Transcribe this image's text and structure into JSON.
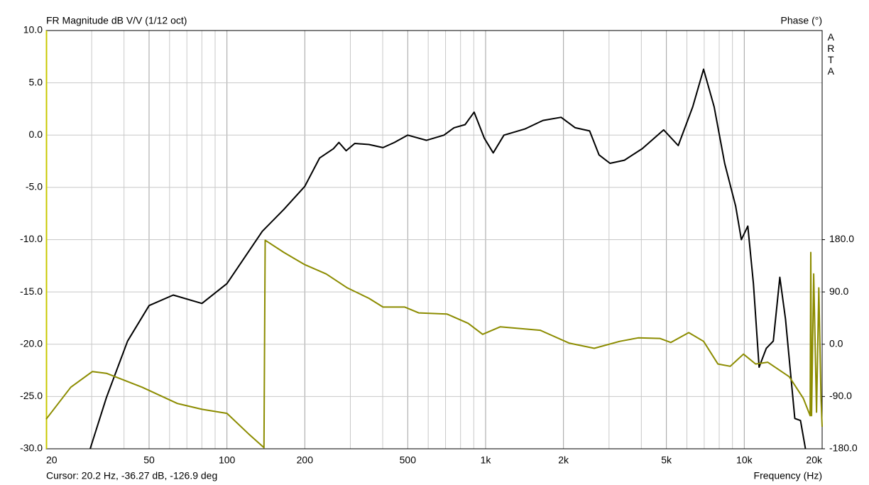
{
  "chart_data": {
    "type": "line",
    "title": "FR Magnitude dB V/V (1/12 oct)",
    "y2_label": "Phase (°)",
    "brand": "ARTA",
    "cursor_text": "Cursor: 20.2 Hz, -36.27 dB, -126.9 deg",
    "x_label": "Frequency (Hz)",
    "log_x": true,
    "grid": true,
    "xlim": [
      20,
      20000
    ],
    "xticks": [
      {
        "value": 20,
        "label": "20"
      },
      {
        "value": 50,
        "label": "50"
      },
      {
        "value": 100,
        "label": "100"
      },
      {
        "value": 200,
        "label": "200"
      },
      {
        "value": 500,
        "label": "500"
      },
      {
        "value": 1000,
        "label": "1k"
      },
      {
        "value": 2000,
        "label": "2k"
      },
      {
        "value": 5000,
        "label": "5k"
      },
      {
        "value": 10000,
        "label": "10k"
      },
      {
        "value": 20000,
        "label": "20k"
      }
    ],
    "x_minor_grid": [
      30,
      40,
      60,
      70,
      80,
      90,
      300,
      400,
      600,
      700,
      800,
      900,
      3000,
      4000,
      6000,
      7000,
      8000,
      9000
    ],
    "ylim": [
      -30,
      10
    ],
    "yticks": [
      {
        "value": 10,
        "label": "10.0"
      },
      {
        "value": 5,
        "label": "5.0"
      },
      {
        "value": 0,
        "label": "0.0"
      },
      {
        "value": -5,
        "label": "-5.0"
      },
      {
        "value": -10,
        "label": "-10.0"
      },
      {
        "value": -15,
        "label": "-15.0"
      },
      {
        "value": -20,
        "label": "-20.0"
      },
      {
        "value": -25,
        "label": "-25.0"
      },
      {
        "value": -30,
        "label": "-30.0"
      }
    ],
    "y2lim": [
      -180,
      540
    ],
    "y2ticks": [
      {
        "value": 180,
        "label": "180.0"
      },
      {
        "value": 90,
        "label": "90.0"
      },
      {
        "value": 0,
        "label": "0.0"
      },
      {
        "value": -90,
        "label": "-90.0"
      },
      {
        "value": -180,
        "label": "-180.0"
      }
    ],
    "series": [
      {
        "color": "#000000",
        "x": [
          29.6,
          34.2,
          41.3,
          50,
          62,
          80,
          100,
          137,
          166,
          200,
          228,
          258,
          271,
          289,
          312,
          354,
          401,
          444,
          500,
          591,
          690,
          755,
          833,
          903,
          989,
          1070,
          1177,
          1424,
          1666,
          1958,
          2220,
          2525,
          2745,
          3026,
          3440,
          4033,
          4880,
          5556,
          6320,
          6960,
          7650,
          8400,
          9260,
          9740,
          10320,
          10850,
          11410,
          12160,
          12950,
          13720,
          14430,
          15680,
          16490,
          17240
        ],
        "values": [
          -30,
          -25.1,
          -19.7,
          -16.3,
          -15.3,
          -16.1,
          -14.2,
          -9.2,
          -7.1,
          -4.9,
          -2.2,
          -1.3,
          -0.7,
          -1.5,
          -0.8,
          -0.9,
          -1.2,
          -0.7,
          0.0,
          -0.5,
          0.0,
          0.7,
          1.0,
          2.2,
          -0.3,
          -1.7,
          0.0,
          0.6,
          1.4,
          1.7,
          0.7,
          0.4,
          -1.9,
          -2.7,
          -2.4,
          -1.3,
          0.5,
          -1.0,
          2.7,
          6.3,
          2.7,
          -2.7,
          -6.8,
          -10.0,
          -8.7,
          -14.2,
          -22.2,
          -20.4,
          -19.7,
          -13.6,
          -17.6,
          -27.1,
          -27.3,
          -30
        ]
      },
      {
        "color": "#8c8c00",
        "axis": "y2",
        "x": [
          20,
          24.9,
          30.2,
          34.2,
          47,
          64.3,
          80,
          100,
          121,
          139,
          140.5,
          166,
          200,
          242,
          292,
          354,
          401,
          487,
          551,
          708,
          856,
          974,
          1140,
          1627,
          2100,
          2630,
          3300,
          3890,
          4720,
          5200,
          6100,
          6960,
          7910,
          8830,
          9930,
          11060,
          12320,
          14930,
          16900,
          17970,
          18080,
          18200,
          18550,
          19030,
          19410,
          19800,
          20000
        ],
        "values": [
          -129,
          -74,
          -47,
          -50,
          -74,
          -102,
          -112,
          -119,
          -154,
          -178,
          179,
          158,
          137,
          121,
          97,
          79,
          64,
          64,
          54,
          52,
          36,
          17,
          30,
          24,
          2,
          -7,
          5,
          11,
          10,
          3,
          20,
          5,
          -34,
          -38,
          -17,
          -34,
          -31,
          -56,
          -93,
          -123,
          158,
          -123,
          121,
          -117,
          97,
          -93,
          -142
        ]
      }
    ]
  }
}
